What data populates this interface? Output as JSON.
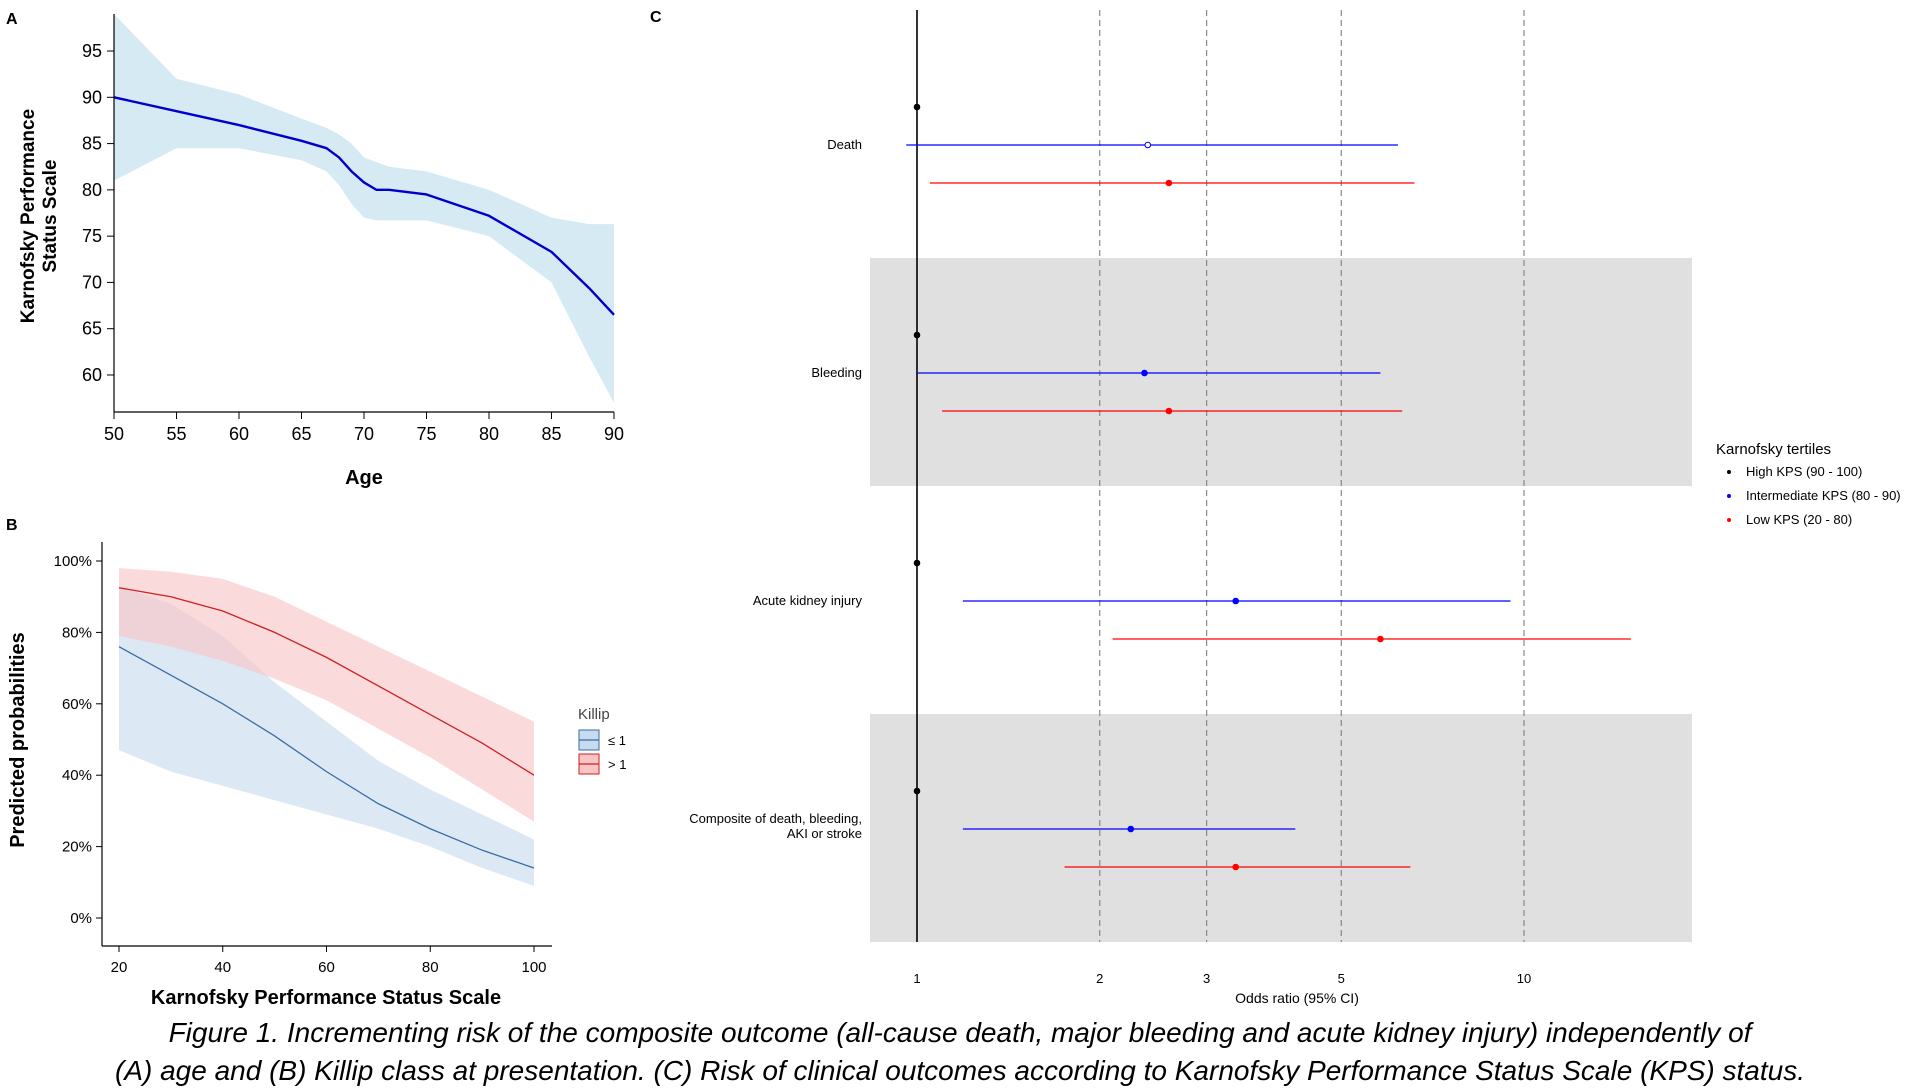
{
  "caption": {
    "line1": "Figure 1. Incrementing risk of the composite outcome (all-cause death, major bleeding and acute kidney injury) independently of",
    "line2": "(A) age and (B) Killip class at presentation. (C) Risk of clinical outcomes according to Karnofsky Performance Status Scale (KPS) status."
  },
  "colors": {
    "panel_a_line": "#0000cc",
    "panel_a_band": "#d6eaf4",
    "killip_low_line": "#3a6ea5",
    "killip_low_band": "#c6dbef",
    "killip_high_line": "#cc2222",
    "killip_high_band": "#f8c4c6",
    "high_kps": "#000000",
    "intermediate_kps": "#0000ff",
    "low_kps": "#ff0000",
    "shade": "#e0e0e0"
  },
  "chart_data": [
    {
      "panel": "A",
      "type": "line",
      "xlabel": "Age",
      "ylabel": "Karnofsky Performance Status Scale",
      "xlim": [
        50,
        90
      ],
      "ylim": [
        56,
        99
      ],
      "xticks": [
        50,
        55,
        60,
        65,
        70,
        75,
        80,
        85,
        90
      ],
      "yticks": [
        60,
        65,
        70,
        75,
        80,
        85,
        90,
        95
      ],
      "series": [
        {
          "x": [
            50,
            55,
            60,
            65,
            67,
            68,
            69,
            70,
            71,
            72,
            75,
            80,
            85,
            88,
            90
          ],
          "y": [
            90,
            88.5,
            87,
            85.3,
            84.5,
            83.5,
            82,
            80.8,
            80,
            80,
            79.5,
            77.2,
            73.3,
            69.4,
            66.5
          ],
          "lower": [
            81,
            84.5,
            84.5,
            83.2,
            82,
            80.5,
            78.5,
            77,
            76.7,
            76.7,
            76.7,
            75,
            70,
            62,
            57
          ],
          "upper": [
            99,
            92,
            90.3,
            87.7,
            86.7,
            86,
            85,
            83.5,
            83,
            82.5,
            82,
            80,
            77,
            76.3,
            76.3
          ]
        }
      ],
      "grid": false
    },
    {
      "panel": "B",
      "type": "line",
      "xlabel": "Karnofsky Performance Status Scale",
      "ylabel": "Predicted probabilities",
      "xlim": [
        20,
        100
      ],
      "ylim": [
        0,
        100
      ],
      "xticks": [
        20,
        40,
        60,
        80,
        100
      ],
      "yticks": [
        "0%",
        "20%",
        "40%",
        "60%",
        "80%",
        "100%"
      ],
      "legend_title": "Killip",
      "legend_position": "right",
      "series": [
        {
          "name": "≤ 1",
          "x": [
            20,
            30,
            40,
            50,
            60,
            70,
            80,
            90,
            100
          ],
          "y": [
            76,
            68,
            60,
            51,
            41,
            32,
            25,
            19,
            14
          ],
          "lower": [
            47,
            41,
            37,
            33,
            29,
            25,
            20,
            14,
            9
          ],
          "upper": [
            93,
            88,
            79,
            66,
            55,
            44,
            36,
            29,
            22
          ]
        },
        {
          "name": "> 1",
          "x": [
            20,
            30,
            40,
            50,
            60,
            70,
            80,
            90,
            100
          ],
          "y": [
            92.5,
            90,
            86,
            80,
            73,
            65,
            57,
            49,
            40
          ],
          "lower": [
            79,
            76,
            72,
            67,
            61,
            53,
            45,
            36,
            27
          ],
          "upper": [
            98,
            97,
            95,
            90,
            83,
            76,
            69,
            62,
            55
          ]
        }
      ],
      "grid": false
    },
    {
      "panel": "C",
      "type": "scatter",
      "subtype": "forest",
      "xlabel": "Odds ratio (95% CI)",
      "xscale": "log",
      "xlim": [
        0.93,
        17
      ],
      "xticks": [
        1,
        2,
        3,
        5,
        10
      ],
      "reference_lines": [
        2,
        3,
        5,
        10
      ],
      "legend_title": "Karnofsky tertiles",
      "legend_position": "right",
      "series_names": [
        "High KPS (90 - 100)",
        "Intermediate KPS (80 - 90)",
        "Low KPS (20 - 80)"
      ],
      "outcomes": [
        {
          "label": "Death",
          "shaded": false,
          "estimates": [
            {
              "series": "High KPS (90 - 100)",
              "or": 1,
              "lo": null,
              "hi": null
            },
            {
              "series": "Intermediate KPS (80 - 90)",
              "or": 2.4,
              "lo": 0.96,
              "hi": 6.2,
              "hollow": true
            },
            {
              "series": "Low KPS (20 - 80)",
              "or": 2.6,
              "lo": 1.05,
              "hi": 6.6
            }
          ]
        },
        {
          "label": "Bleeding",
          "shaded": true,
          "estimates": [
            {
              "series": "High KPS (90 - 100)",
              "or": 1,
              "lo": null,
              "hi": null
            },
            {
              "series": "Intermediate KPS (80 - 90)",
              "or": 2.37,
              "lo": 1,
              "hi": 5.8
            },
            {
              "series": "Low KPS (20 - 80)",
              "or": 2.6,
              "lo": 1.1,
              "hi": 6.3
            }
          ]
        },
        {
          "label": "Acute kidney injury",
          "shaded": false,
          "estimates": [
            {
              "series": "High KPS (90 - 100)",
              "or": 1,
              "lo": null,
              "hi": null
            },
            {
              "series": "Intermediate KPS (80 - 90)",
              "or": 3.35,
              "lo": 1.19,
              "hi": 9.5
            },
            {
              "series": "Low KPS (20 - 80)",
              "or": 5.8,
              "lo": 2.1,
              "hi": 15
            }
          ]
        },
        {
          "label": "Composite of death, bleeding, AKI or stroke",
          "label_lines": [
            "Composite of death, bleeding,",
            "AKI or stroke"
          ],
          "shaded": true,
          "estimates": [
            {
              "series": "High KPS (90 - 100)",
              "or": 1,
              "lo": null,
              "hi": null
            },
            {
              "series": "Intermediate KPS (80 - 90)",
              "or": 2.25,
              "lo": 1.19,
              "hi": 4.2
            },
            {
              "series": "Low KPS (20 - 80)",
              "or": 3.35,
              "lo": 1.75,
              "hi": 6.5
            }
          ]
        }
      ],
      "grid": false
    }
  ],
  "panel_labels": [
    "A",
    "B",
    "C"
  ]
}
